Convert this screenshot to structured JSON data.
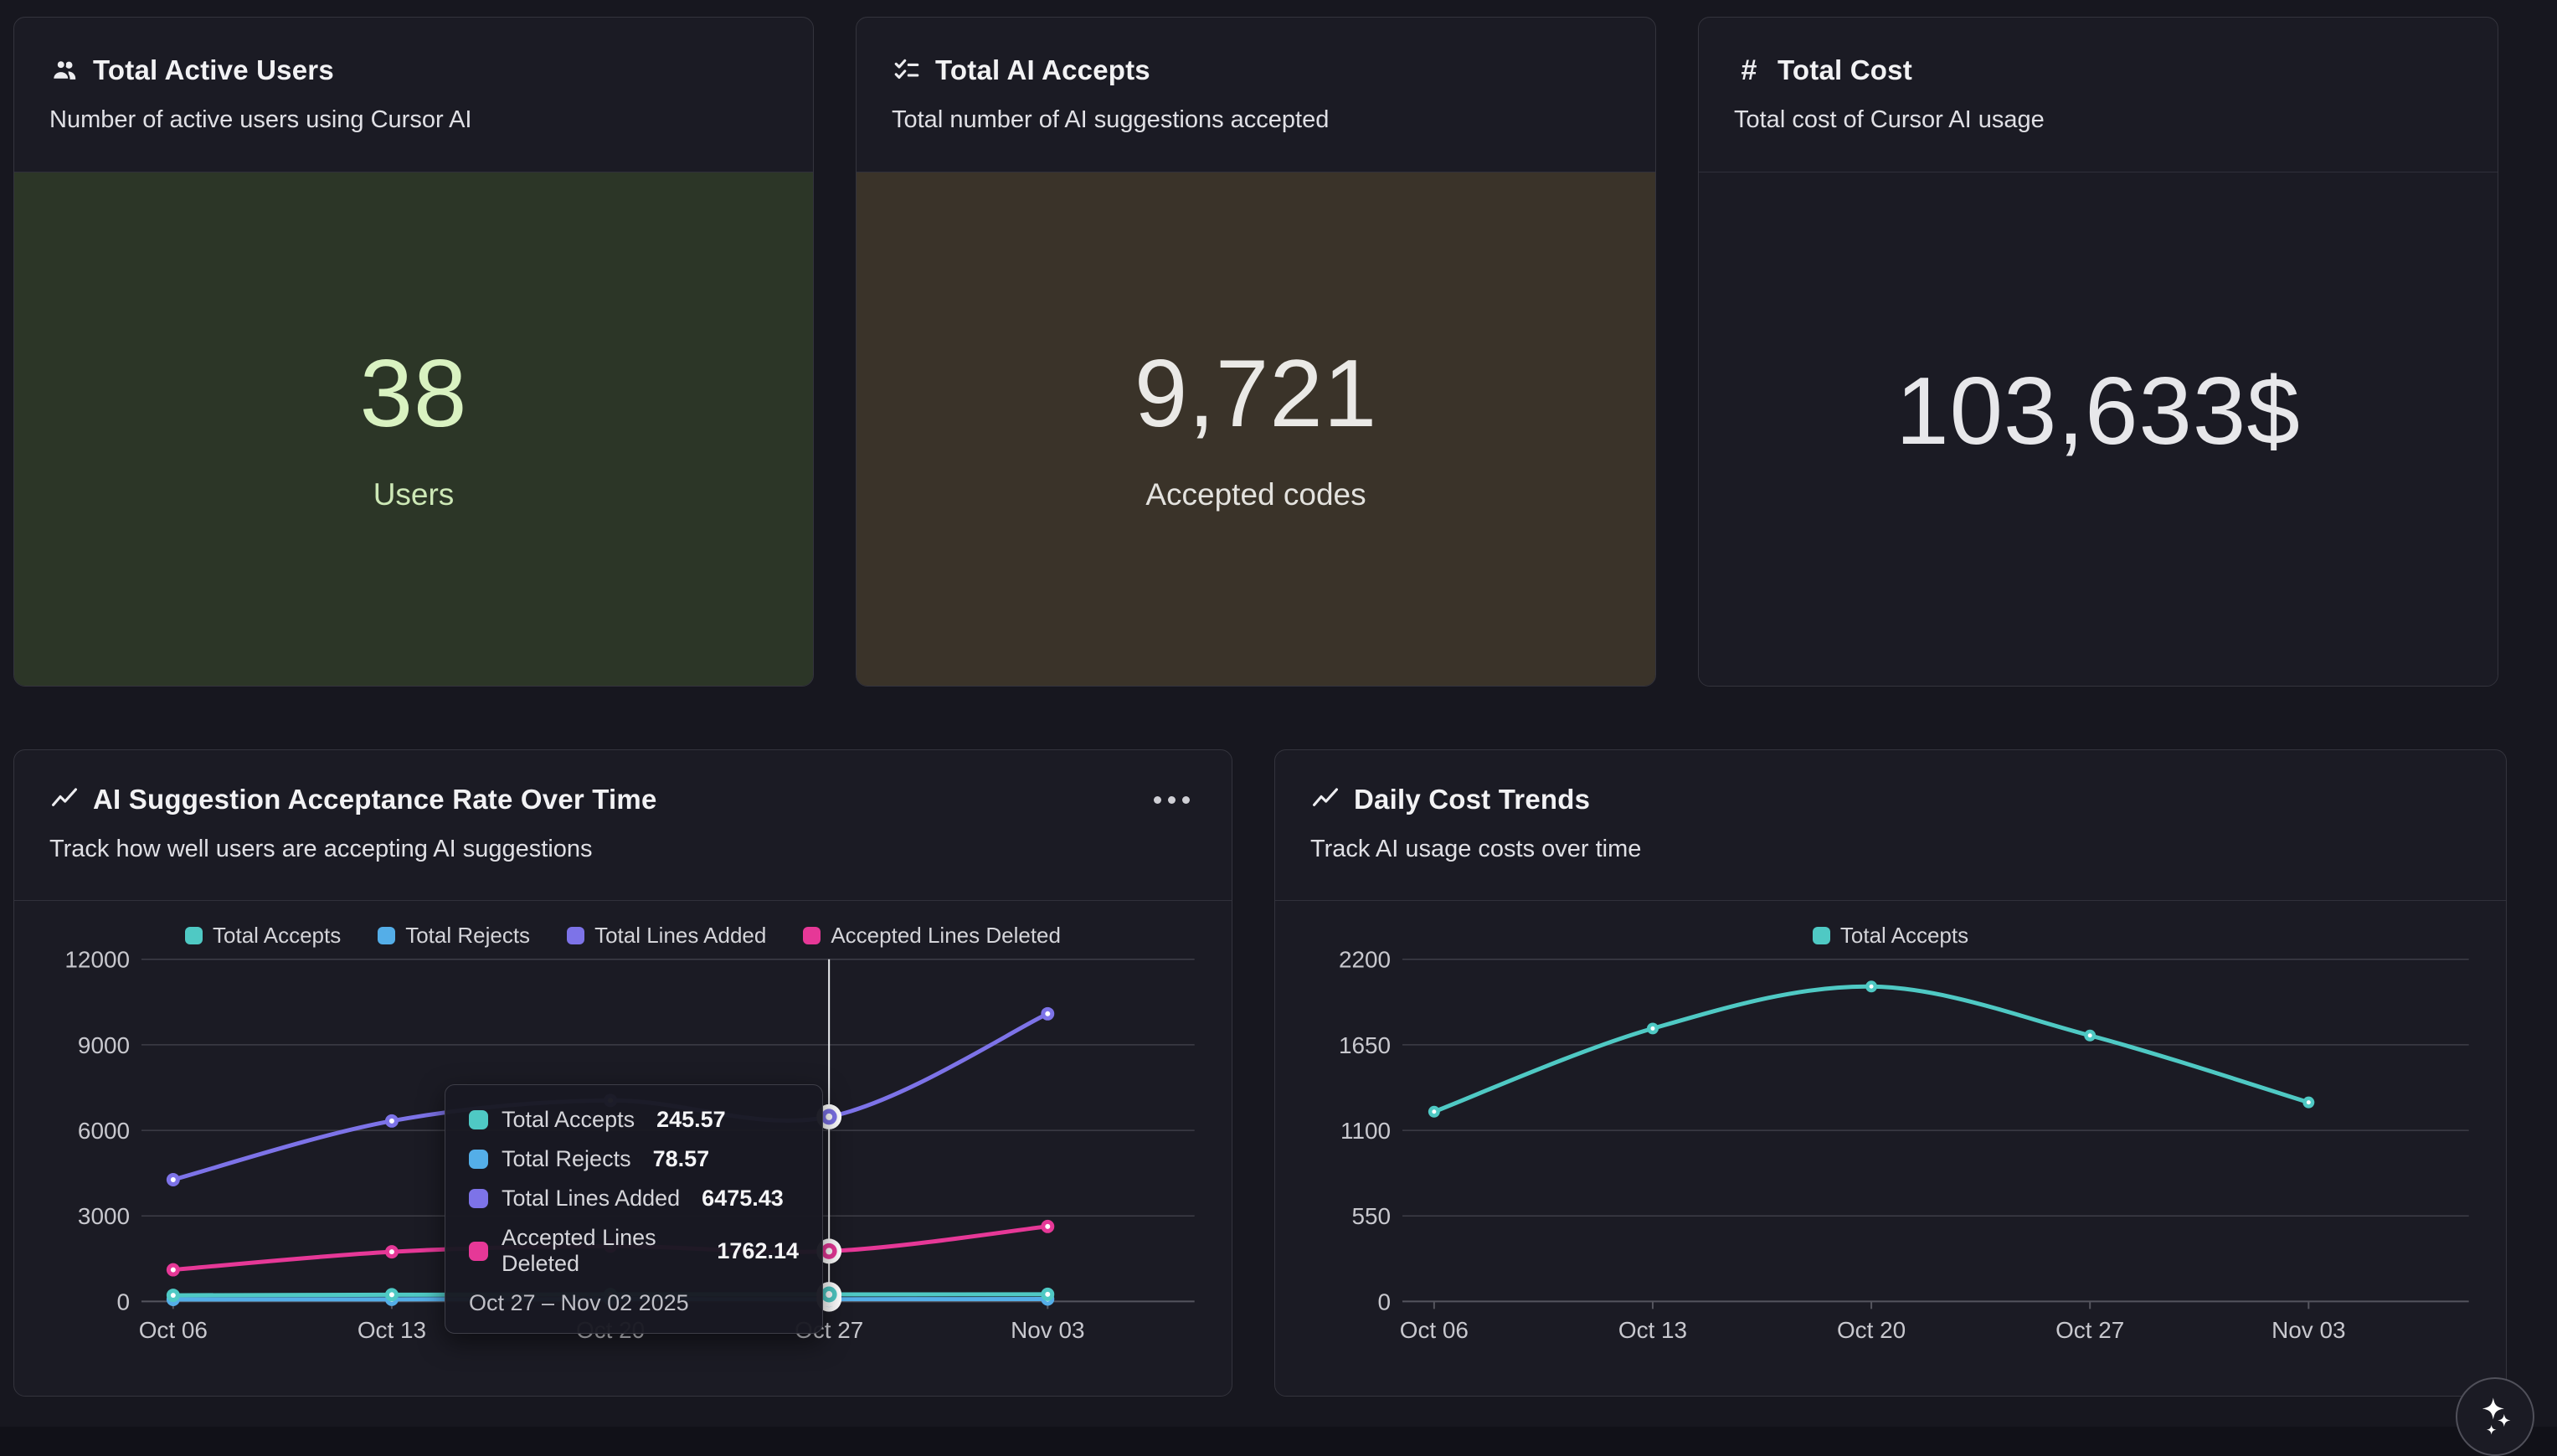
{
  "stat_cards": [
    {
      "icon": "users-icon",
      "title": "Total Active Users",
      "subtitle": "Number of active users using Cursor AI",
      "value": "38",
      "unit": "Users",
      "value_color": "#d9f2c1",
      "unit_color": "#cde8b6",
      "body_bg": "#2c3627"
    },
    {
      "icon": "list-checks-icon",
      "title": "Total AI Accepts",
      "subtitle": "Total number of AI suggestions accepted",
      "value": "9,721",
      "unit": "Accepted codes",
      "value_color": "#eae9e6",
      "unit_color": "#e3e2de",
      "body_bg": "#3a3329"
    },
    {
      "icon": "hash-icon",
      "title": "Total Cost",
      "subtitle": "Total cost of Cursor AI usage",
      "value": "103,633$",
      "unit": "",
      "value_color": "#e7e7ea",
      "unit_color": "#e7e7ea",
      "body_bg": "#1b1b24"
    }
  ],
  "chart_data": [
    {
      "type": "line",
      "title": "AI Suggestion Acceptance Rate Over Time",
      "subtitle": "Track how well users are accepting AI suggestions",
      "header_icon": "trending-up-icon",
      "menu_icon": "ellipsis-icon",
      "legend_position": "top",
      "grid": true,
      "x": [
        "Oct 06",
        "Oct 13",
        "Oct 20",
        "Oct 27",
        "Nov 03"
      ],
      "ylim": [
        0,
        12000
      ],
      "yticks": [
        0,
        3000,
        6000,
        9000,
        12000
      ],
      "series": [
        {
          "name": "Total Accepts",
          "color": "#4fc9c4",
          "values": [
            215,
            235,
            245,
            245.57,
            250
          ]
        },
        {
          "name": "Total Rejects",
          "color": "#54aee8",
          "values": [
            70,
            75,
            80,
            78.57,
            85
          ]
        },
        {
          "name": "Total Lines Added",
          "color": "#7d73e8",
          "values": [
            4270,
            6330,
            7050,
            6475.43,
            10090
          ]
        },
        {
          "name": "Accepted Lines Deleted",
          "color": "#e63897",
          "values": [
            1110,
            1740,
            1940,
            1762.14,
            2630
          ]
        }
      ],
      "crosshair_index": 3,
      "tooltip": {
        "rows": [
          {
            "label": "Total Accepts",
            "value": "245.57",
            "color": "#4fc9c4"
          },
          {
            "label": "Total Rejects",
            "value": "78.57",
            "color": "#54aee8"
          },
          {
            "label": "Total Lines Added",
            "value": "6475.43",
            "color": "#7d73e8"
          },
          {
            "label": "Accepted Lines Deleted",
            "value": "1762.14",
            "color": "#e63897"
          }
        ],
        "footer": "Oct 27 – Nov 02 2025"
      }
    },
    {
      "type": "line",
      "title": "Daily Cost Trends",
      "subtitle": "Track AI usage costs over time",
      "header_icon": "trending-up-icon",
      "legend_position": "top",
      "grid": true,
      "x": [
        "Oct 06",
        "Oct 13",
        "Oct 20",
        "Oct 27",
        "Nov 03"
      ],
      "ylim": [
        0,
        2200
      ],
      "yticks": [
        0,
        550,
        1100,
        1650,
        2200
      ],
      "series": [
        {
          "name": "Total Accepts",
          "color": "#4fc9c4",
          "values": [
            1220,
            1755,
            2025,
            1710,
            1280
          ]
        }
      ]
    }
  ],
  "colors": {
    "page_bg": "#17171f",
    "card_bg": "#1b1b24",
    "grid_line": "#3e3e47",
    "axis_line": "#55555e",
    "axis_text": "#c8c8ce",
    "crosshair": "#eceef0"
  }
}
